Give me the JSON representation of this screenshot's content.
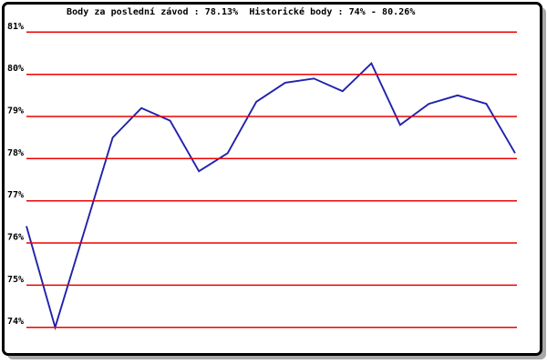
{
  "chart_data": {
    "type": "line",
    "title": "Body za poslední závod : 78.13%  Historické body : 74% - 80.26%",
    "title_parts": {
      "last_race_label": "Body za poslední závod",
      "last_race_value": "78.13%",
      "historical_label": "Historické body",
      "historical_min": "74%",
      "historical_max": "80.26%"
    },
    "series": [
      {
        "name": "body-za-zavod",
        "values": [
          76.4,
          74.0,
          76.25,
          78.5,
          79.2,
          78.9,
          77.7,
          78.13,
          79.35,
          79.8,
          79.9,
          79.6,
          80.26,
          78.8,
          79.3,
          79.5,
          79.3,
          78.13
        ]
      }
    ],
    "xlabel": "",
    "ylabel": "",
    "ylim": [
      74,
      81
    ],
    "yticks": [
      {
        "value": 81,
        "label": "81%"
      },
      {
        "value": 80,
        "label": "80%"
      },
      {
        "value": 79,
        "label": "79%"
      },
      {
        "value": 78,
        "label": "78%"
      },
      {
        "value": 77,
        "label": "77%"
      },
      {
        "value": 76,
        "label": "76%"
      },
      {
        "value": 75,
        "label": "75%"
      },
      {
        "value": 74,
        "label": "74%"
      }
    ],
    "grid": "horizontal",
    "legend": "none",
    "colors": {
      "line": "#2121ad",
      "grid": "#ec0000",
      "text": "#000000",
      "frame_border": "#000000",
      "frame_shadow": "#a8a8a8",
      "background": "#ffffff"
    }
  }
}
